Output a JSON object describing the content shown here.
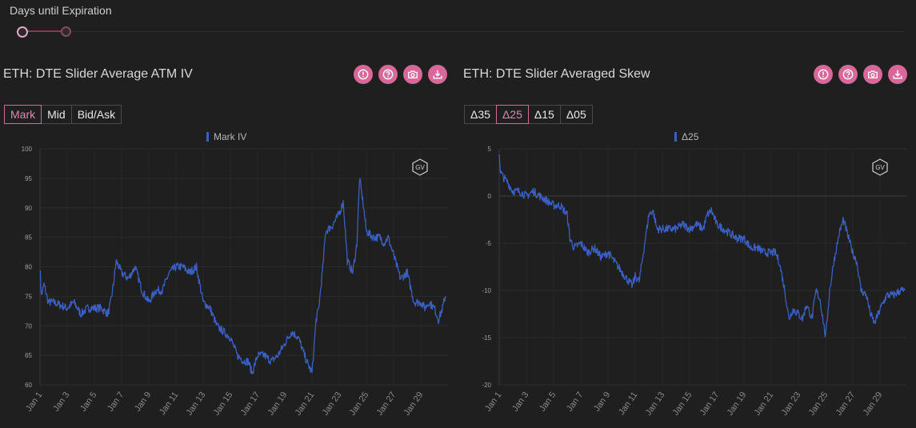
{
  "slider": {
    "label": "Days until Expiration"
  },
  "left_panel": {
    "title": "ETH: DTE Slider Average ATM IV",
    "buttons": [
      "Mark",
      "Mid",
      "Bid/Ask"
    ],
    "active": "Mark",
    "icons": [
      "alert-icon",
      "help-icon",
      "camera-icon",
      "download-icon"
    ]
  },
  "right_panel": {
    "title": "ETH: DTE Slider Averaged Skew",
    "buttons": [
      "Δ35",
      "Δ25",
      "Δ15",
      "Δ05"
    ],
    "active": "Δ25",
    "icons": [
      "alert-icon",
      "help-icon",
      "camera-icon",
      "download-icon"
    ]
  },
  "watermark": "GV",
  "colors": {
    "series": "#3a5fc5",
    "accent": "#d9679a",
    "background": "#1f1f1f",
    "grid": "#2b2b2b"
  },
  "chart_data": [
    {
      "type": "line",
      "legend": "Mark IV",
      "series": [
        {
          "name": "Mark IV",
          "x": [
            1,
            1.1,
            1.3,
            1.6,
            2,
            2.5,
            3,
            3.5,
            4,
            4.5,
            5,
            5.5,
            6,
            6.2,
            6.4,
            6.6,
            7,
            7.5,
            8,
            8.5,
            9,
            9.5,
            10,
            10.5,
            11,
            11.5,
            12,
            12.5,
            13,
            13.5,
            14,
            14.5,
            15,
            15.5,
            16,
            16.3,
            16.6,
            17,
            17.5,
            18,
            18.5,
            19,
            19.5,
            20,
            20.3,
            20.6,
            21,
            21.3,
            21.5,
            21.8,
            22,
            22.5,
            23,
            23.3,
            23.6,
            24,
            24.3,
            24.5,
            24.8,
            25,
            25.5,
            26,
            26.3,
            26.6,
            27,
            27.5,
            28,
            28.5,
            29,
            29.3,
            29.6,
            30,
            30.3,
            30.6,
            30.8
          ],
          "values": [
            80,
            75,
            77,
            74,
            74,
            73.5,
            73,
            74,
            72,
            73,
            73,
            73,
            72,
            74,
            77,
            81,
            79,
            78,
            80,
            76,
            74,
            76,
            76,
            79,
            80,
            80,
            79,
            80,
            74,
            73,
            70,
            69,
            68,
            65,
            64,
            64,
            62,
            65,
            65,
            64,
            65,
            67,
            69,
            68,
            66,
            64,
            62,
            71,
            73,
            80,
            86,
            87,
            89,
            91,
            81,
            79,
            84,
            95,
            90,
            86,
            85,
            85,
            84,
            85,
            82,
            78,
            79,
            74,
            74,
            73,
            74,
            73,
            71,
            73,
            75
          ]
        }
      ],
      "x_ticks": [
        "Jan 1",
        "Jan 3",
        "Jan 5",
        "Jan 7",
        "Jan 9",
        "Jan 11",
        "Jan 13",
        "Jan 15",
        "Jan 17",
        "Jan 19",
        "Jan 21",
        "Jan 23",
        "Jan 25",
        "Jan 27",
        "Jan 29"
      ],
      "y_ticks": [
        "100",
        "95",
        "90",
        "85",
        "80",
        "75",
        "70",
        "65",
        "60"
      ],
      "xlim": [
        1,
        31
      ],
      "ylim": [
        60,
        100
      ],
      "grid": true
    },
    {
      "type": "line",
      "legend": "Δ25",
      "series": [
        {
          "name": "Δ25",
          "x": [
            1,
            1.1,
            1.3,
            1.6,
            2,
            2.5,
            3,
            3.5,
            4,
            4.5,
            5,
            5.5,
            6,
            6.2,
            6.5,
            7,
            7.5,
            8,
            8.5,
            9,
            9.5,
            10,
            10.5,
            10.8,
            11,
            11.3,
            11.5,
            12,
            12.3,
            12.6,
            13,
            13.5,
            14,
            14.5,
            15,
            15.5,
            16,
            16.3,
            16.6,
            17,
            17.5,
            18,
            18.5,
            19,
            19.5,
            20,
            20.5,
            21,
            21.3,
            21.6,
            22,
            22.3,
            22.6,
            23,
            23.3,
            23.6,
            24,
            24.3,
            24.6,
            25,
            25.3,
            25.6,
            26,
            26.3,
            26.6,
            27,
            27.3,
            27.6,
            28,
            28.3,
            28.6,
            29,
            29.5,
            30,
            30.5,
            30.8
          ],
          "values": [
            4.5,
            2.5,
            2,
            1.5,
            0.5,
            0.5,
            0,
            0.5,
            0,
            -0.5,
            -1,
            -1,
            -2,
            -4.5,
            -5.5,
            -5,
            -6,
            -5.5,
            -6.5,
            -6,
            -7,
            -8,
            -9,
            -9.5,
            -8.5,
            -9,
            -7,
            -2,
            -1.5,
            -3.5,
            -3.5,
            -3.5,
            -3.5,
            -3,
            -3.5,
            -3,
            -3.5,
            -2,
            -1.5,
            -3,
            -3.5,
            -4,
            -4.5,
            -4.5,
            -5.5,
            -5.5,
            -6,
            -6,
            -6,
            -7,
            -10,
            -13,
            -12,
            -12.5,
            -13,
            -11.5,
            -13,
            -10,
            -11,
            -15,
            -10,
            -7,
            -4,
            -2.5,
            -4,
            -6,
            -7,
            -10,
            -10.5,
            -12.5,
            -13.5,
            -12,
            -10.5,
            -10.5,
            -10,
            -10
          ]
        }
      ],
      "x_ticks": [
        "Jan 1",
        "Jan 3",
        "Jan 5",
        "Jan 7",
        "Jan 9",
        "Jan 11",
        "Jan 13",
        "Jan 15",
        "Jan 17",
        "Jan 19",
        "Jan 21",
        "Jan 23",
        "Jan 25",
        "Jan 27",
        "Jan 29"
      ],
      "y_ticks": [
        "5",
        "0",
        "-5",
        "-10",
        "-15",
        "-20"
      ],
      "xlim": [
        1,
        31
      ],
      "ylim": [
        -20,
        5
      ],
      "grid": true
    }
  ]
}
